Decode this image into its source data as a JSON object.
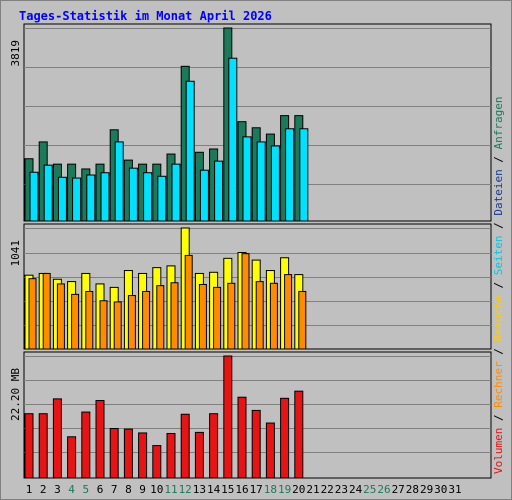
{
  "title": "Tages-Statistik im Monat April 2026",
  "chart_data": [
    {
      "type": "bar",
      "panel": "top",
      "y_label": "3819",
      "ylim": [
        0,
        3819
      ],
      "categories": [
        "1",
        "2",
        "3",
        "4",
        "5",
        "6",
        "7",
        "8",
        "9",
        "10",
        "11",
        "12",
        "13",
        "14",
        "15",
        "16",
        "17",
        "18",
        "19",
        "20",
        "21",
        "22",
        "23",
        "24",
        "25",
        "26",
        "27",
        "28",
        "29",
        "30",
        "31"
      ],
      "series": [
        {
          "name": "Anfragen",
          "color": "#1a7a5a",
          "values": [
            1232,
            1565,
            1125,
            1125,
            1030,
            1125,
            1805,
            1205,
            1125,
            1125,
            1325,
            3061,
            1360,
            1425,
            3819,
            1965,
            1845,
            1720,
            2085,
            2085,
            null,
            null,
            null,
            null,
            null,
            null,
            null,
            null,
            null,
            null,
            null
          ]
        },
        {
          "name": "Dateien",
          "color": "#1a3a8a",
          "values": [
            null,
            null,
            null,
            null,
            null,
            null,
            null,
            null,
            null,
            null,
            null,
            null,
            null,
            null,
            null,
            null,
            null,
            null,
            null,
            null,
            null,
            null,
            null,
            null,
            null,
            null,
            null,
            null,
            null,
            null,
            null
          ]
        },
        {
          "name": "Seiten",
          "color": "#00e0ff",
          "values": [
            965,
            1105,
            865,
            850,
            910,
            955,
            1565,
            1045,
            955,
            885,
            1125,
            2765,
            1005,
            1185,
            3221,
            1665,
            1565,
            1485,
            1825,
            1825,
            null,
            null,
            null,
            null,
            null,
            null,
            null,
            null,
            null,
            null,
            null
          ]
        }
      ]
    },
    {
      "type": "bar",
      "panel": "middle",
      "y_label": "1041",
      "ylim": [
        0,
        1041
      ],
      "categories": [
        "1",
        "2",
        "3",
        "4",
        "5",
        "6",
        "7",
        "8",
        "9",
        "10",
        "11",
        "12",
        "13",
        "14",
        "15",
        "16",
        "17",
        "18",
        "19",
        "20",
        "21",
        "22",
        "23",
        "24",
        "25",
        "26",
        "27",
        "28",
        "29",
        "30",
        "31"
      ],
      "series": [
        {
          "name": "Besuche",
          "color": "#ffff00",
          "values": [
            635,
            650,
            600,
            580,
            650,
            560,
            530,
            675,
            650,
            700,
            715,
            1041,
            650,
            660,
            780,
            830,
            765,
            675,
            785,
            640,
            null,
            null,
            null,
            null,
            null,
            null,
            null,
            null,
            null,
            null,
            null
          ]
        },
        {
          "name": "Rechner",
          "color": "#ff8c00",
          "values": [
            605,
            650,
            560,
            470,
            495,
            415,
            405,
            460,
            495,
            545,
            570,
            805,
            555,
            530,
            565,
            820,
            580,
            565,
            640,
            495,
            null,
            null,
            null,
            null,
            null,
            null,
            null,
            null,
            null,
            null,
            null
          ]
        }
      ]
    },
    {
      "type": "bar",
      "panel": "bottom",
      "y_label": "22.20 MB",
      "ylim": [
        0,
        22.2
      ],
      "categories": [
        "1",
        "2",
        "3",
        "4",
        "5",
        "6",
        "7",
        "8",
        "9",
        "10",
        "11",
        "12",
        "13",
        "14",
        "15",
        "16",
        "17",
        "18",
        "19",
        "20",
        "21",
        "22",
        "23",
        "24",
        "25",
        "26",
        "27",
        "28",
        "29",
        "30",
        "31"
      ],
      "series": [
        {
          "name": "Volumen",
          "color": "#e61414",
          "values": [
            11.7,
            11.7,
            14.4,
            7.5,
            12.0,
            14.1,
            9.0,
            8.9,
            8.2,
            5.9,
            8.1,
            11.6,
            8.3,
            11.7,
            22.2,
            14.7,
            12.3,
            10.0,
            14.5,
            15.8,
            null,
            null,
            null,
            null,
            null,
            null,
            null,
            null,
            null,
            null,
            null
          ]
        }
      ]
    }
  ],
  "x_labels": [
    {
      "text": "1",
      "color": "#000000"
    },
    {
      "text": "2",
      "color": "#000000"
    },
    {
      "text": "3",
      "color": "#000000"
    },
    {
      "text": "4",
      "color": "#1a7a5a"
    },
    {
      "text": "5",
      "color": "#1a7a5a"
    },
    {
      "text": "6",
      "color": "#000000"
    },
    {
      "text": "7",
      "color": "#000000"
    },
    {
      "text": "8",
      "color": "#000000"
    },
    {
      "text": "9",
      "color": "#000000"
    },
    {
      "text": "10",
      "color": "#000000"
    },
    {
      "text": "11",
      "color": "#1a7a5a"
    },
    {
      "text": "12",
      "color": "#1a7a5a"
    },
    {
      "text": "13",
      "color": "#000000"
    },
    {
      "text": "14",
      "color": "#000000"
    },
    {
      "text": "15",
      "color": "#000000"
    },
    {
      "text": "16",
      "color": "#000000"
    },
    {
      "text": "17",
      "color": "#000000"
    },
    {
      "text": "18",
      "color": "#1a7a5a"
    },
    {
      "text": "19",
      "color": "#1a7a5a"
    },
    {
      "text": "20",
      "color": "#000000"
    },
    {
      "text": "21",
      "color": "#000000"
    },
    {
      "text": "22",
      "color": "#000000"
    },
    {
      "text": "23",
      "color": "#000000"
    },
    {
      "text": "24",
      "color": "#000000"
    },
    {
      "text": "25",
      "color": "#1a7a5a"
    },
    {
      "text": "26",
      "color": "#1a7a5a"
    },
    {
      "text": "27",
      "color": "#000000"
    },
    {
      "text": "28",
      "color": "#000000"
    },
    {
      "text": "29",
      "color": "#000000"
    },
    {
      "text": "30",
      "color": "#000000"
    },
    {
      "text": "31",
      "color": "#000000"
    }
  ],
  "legend": [
    {
      "text": "Volumen",
      "color": "#e61414"
    },
    {
      "text": " / ",
      "color": "#000000"
    },
    {
      "text": "Rechner",
      "color": "#ff8c00"
    },
    {
      "text": " / ",
      "color": "#000000"
    },
    {
      "text": "Besuche",
      "color": "#ffcc00"
    },
    {
      "text": " / ",
      "color": "#000000"
    },
    {
      "text": "Seiten",
      "color": "#00c8e6"
    },
    {
      "text": " / ",
      "color": "#000000"
    },
    {
      "text": "Dateien",
      "color": "#1a3a8a"
    },
    {
      "text": " / ",
      "color": "#000000"
    },
    {
      "text": "Anfragen",
      "color": "#1a7a5a"
    }
  ]
}
